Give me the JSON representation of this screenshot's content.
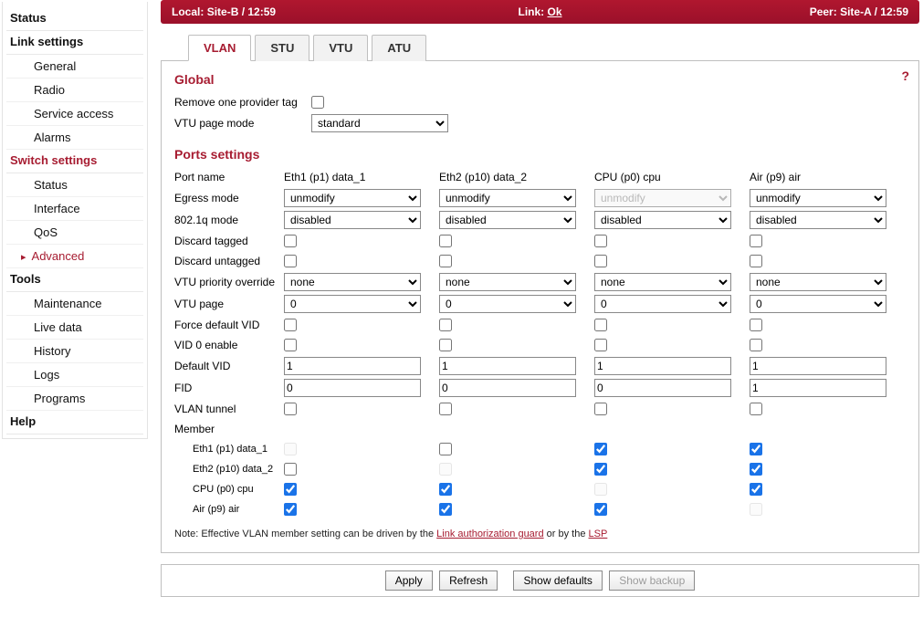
{
  "statusbar": {
    "local_label": "Local:",
    "local_value": "Site-B / 12:59",
    "link_label": "Link:",
    "link_value": "Ok",
    "peer_label": "Peer:",
    "peer_value": "Site-A / 12:59"
  },
  "sidebar": {
    "status": "Status",
    "link_settings": "Link settings",
    "general": "General",
    "radio": "Radio",
    "service_access": "Service access",
    "alarms": "Alarms",
    "switch_settings": "Switch settings",
    "sw_status": "Status",
    "interface": "Interface",
    "qos": "QoS",
    "advanced": "Advanced",
    "tools": "Tools",
    "maintenance": "Maintenance",
    "live_data": "Live data",
    "history": "History",
    "logs": "Logs",
    "programs": "Programs",
    "help": "Help"
  },
  "tabs": {
    "vlan": "VLAN",
    "stu": "STU",
    "vtu": "VTU",
    "atu": "ATU"
  },
  "sections": {
    "global": "Global",
    "ports": "Ports settings"
  },
  "global": {
    "remove_tag_label": "Remove one provider tag",
    "remove_tag_checked": false,
    "vtu_page_mode_label": "VTU page mode",
    "vtu_page_mode_value": "standard"
  },
  "port_labels": {
    "port_name": "Port name",
    "egress_mode": "Egress mode",
    "mode_8021q": "802.1q mode",
    "discard_tagged": "Discard tagged",
    "discard_untagged": "Discard untagged",
    "vtu_priority": "VTU priority override",
    "vtu_page": "VTU page",
    "force_default_vid": "Force default VID",
    "vid0_enable": "VID 0 enable",
    "default_vid": "Default VID",
    "fid": "FID",
    "vlan_tunnel": "VLAN tunnel",
    "member": "Member",
    "member_eth1": "Eth1 (p1) data_1",
    "member_eth2": "Eth2 (p10) data_2",
    "member_cpu": "CPU (p0) cpu",
    "member_air": "Air (p9) air"
  },
  "ports": [
    {
      "name": "Eth1 (p1) data_1",
      "egress_mode": "unmodify",
      "egress_disabled": false,
      "mode_8021q": "disabled",
      "discard_tagged": false,
      "discard_untagged": false,
      "vtu_priority": "none",
      "vtu_page": "0",
      "force_default_vid": false,
      "vid0_enable": false,
      "default_vid": "1",
      "fid": "0",
      "vlan_tunnel": false,
      "member_eth1": {
        "checked": false,
        "disabled": true
      },
      "member_eth2": {
        "checked": false,
        "disabled": false
      },
      "member_cpu": {
        "checked": true,
        "disabled": false
      },
      "member_air": {
        "checked": true,
        "disabled": false
      }
    },
    {
      "name": "Eth2 (p10) data_2",
      "egress_mode": "unmodify",
      "egress_disabled": false,
      "mode_8021q": "disabled",
      "discard_tagged": false,
      "discard_untagged": false,
      "vtu_priority": "none",
      "vtu_page": "0",
      "force_default_vid": false,
      "vid0_enable": false,
      "default_vid": "1",
      "fid": "0",
      "vlan_tunnel": false,
      "member_eth1": {
        "checked": false,
        "disabled": false
      },
      "member_eth2": {
        "checked": false,
        "disabled": true
      },
      "member_cpu": {
        "checked": true,
        "disabled": false
      },
      "member_air": {
        "checked": true,
        "disabled": false
      }
    },
    {
      "name": "CPU (p0) cpu",
      "egress_mode": "unmodify",
      "egress_disabled": true,
      "mode_8021q": "disabled",
      "discard_tagged": false,
      "discard_untagged": false,
      "vtu_priority": "none",
      "vtu_page": "0",
      "force_default_vid": false,
      "vid0_enable": false,
      "default_vid": "1",
      "fid": "0",
      "vlan_tunnel": false,
      "member_eth1": {
        "checked": true,
        "disabled": false
      },
      "member_eth2": {
        "checked": true,
        "disabled": false
      },
      "member_cpu": {
        "checked": false,
        "disabled": true
      },
      "member_air": {
        "checked": true,
        "disabled": false
      }
    },
    {
      "name": "Air (p9) air",
      "egress_mode": "unmodify",
      "egress_disabled": false,
      "mode_8021q": "disabled",
      "discard_tagged": false,
      "discard_untagged": false,
      "vtu_priority": "none",
      "vtu_page": "0",
      "force_default_vid": false,
      "vid0_enable": false,
      "default_vid": "1",
      "fid": "1",
      "vlan_tunnel": false,
      "member_eth1": {
        "checked": true,
        "disabled": false
      },
      "member_eth2": {
        "checked": true,
        "disabled": false
      },
      "member_cpu": {
        "checked": true,
        "disabled": false
      },
      "member_air": {
        "checked": false,
        "disabled": true
      }
    }
  ],
  "note": {
    "prefix": "Note: Effective VLAN member setting can be driven by the ",
    "link1": "Link authorization guard",
    "middle": " or by the ",
    "link2": "LSP"
  },
  "buttons": {
    "apply": "Apply",
    "refresh": "Refresh",
    "show_defaults": "Show defaults",
    "show_backup": "Show backup"
  },
  "help_icon": "?"
}
